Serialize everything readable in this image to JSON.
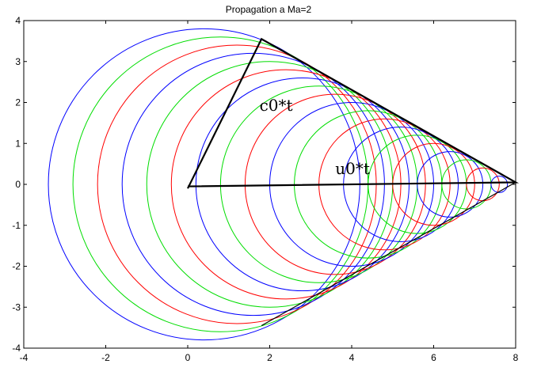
{
  "chart_data": {
    "type": "line",
    "title": "Propagation a Ma=2",
    "xlabel": "",
    "ylabel": "",
    "xlim": [
      -4,
      8
    ],
    "ylim": [
      -4,
      4
    ],
    "xticks": [
      -4,
      -2,
      0,
      2,
      4,
      6,
      8
    ],
    "yticks": [
      4,
      3,
      2,
      1,
      0,
      -1,
      -2,
      -3,
      -4
    ],
    "grid": false,
    "legend": "none",
    "colors": [
      "#0000ff",
      "#00dd00",
      "#ff0000"
    ],
    "circles": [
      {
        "cx": 0.4,
        "r": 3.8
      },
      {
        "cx": 0.8,
        "r": 3.6
      },
      {
        "cx": 1.2,
        "r": 3.4
      },
      {
        "cx": 1.6,
        "r": 3.2
      },
      {
        "cx": 2.0,
        "r": 3.0
      },
      {
        "cx": 2.4,
        "r": 2.8
      },
      {
        "cx": 2.8,
        "r": 2.6
      },
      {
        "cx": 3.2,
        "r": 2.4
      },
      {
        "cx": 3.6,
        "r": 2.2
      },
      {
        "cx": 4.0,
        "r": 2.0
      },
      {
        "cx": 4.4,
        "r": 1.8
      },
      {
        "cx": 4.8,
        "r": 1.6
      },
      {
        "cx": 5.2,
        "r": 1.4
      },
      {
        "cx": 5.6,
        "r": 1.2
      },
      {
        "cx": 6.0,
        "r": 1.0
      },
      {
        "cx": 6.4,
        "r": 0.8
      },
      {
        "cx": 6.8,
        "r": 0.6
      },
      {
        "cx": 7.2,
        "r": 0.4
      },
      {
        "cx": 7.6,
        "r": 0.2
      }
    ],
    "mach_cone": [
      [
        1.8,
        3.55
      ],
      [
        8.0,
        0.05
      ],
      [
        1.8,
        -3.45
      ]
    ],
    "triangle": [
      [
        0.0,
        -0.1
      ],
      [
        1.8,
        3.55
      ],
      [
        8.0,
        0.05
      ],
      [
        0.0,
        -0.05
      ]
    ],
    "annotations": [
      {
        "text": "c0*t",
        "x": 1.75,
        "y": 1.8
      },
      {
        "text": "u0*t",
        "x": 3.6,
        "y": 0.25
      }
    ]
  }
}
